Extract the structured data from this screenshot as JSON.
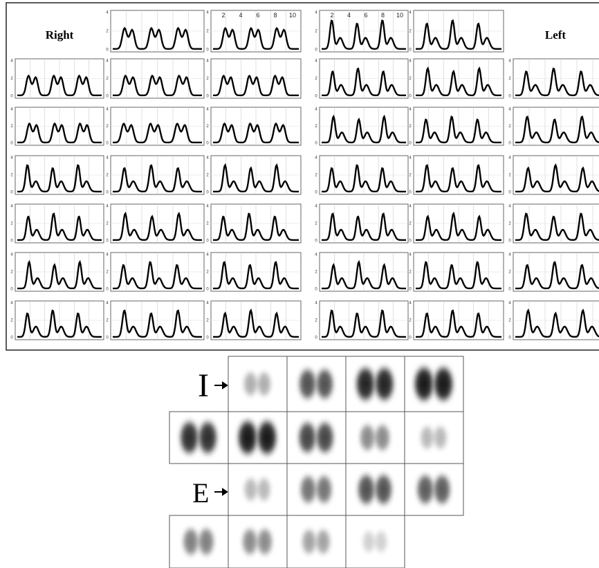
{
  "figure": {
    "top_panel": {
      "right_label": "Right",
      "left_label": "Left",
      "x_ticks": [
        "2",
        "4",
        "6",
        "8",
        "10"
      ],
      "y_ticks": [
        "4",
        "2",
        "0"
      ]
    },
    "bottom_panel": {
      "inspiration_label": "I",
      "expiration_label": "E"
    }
  }
}
